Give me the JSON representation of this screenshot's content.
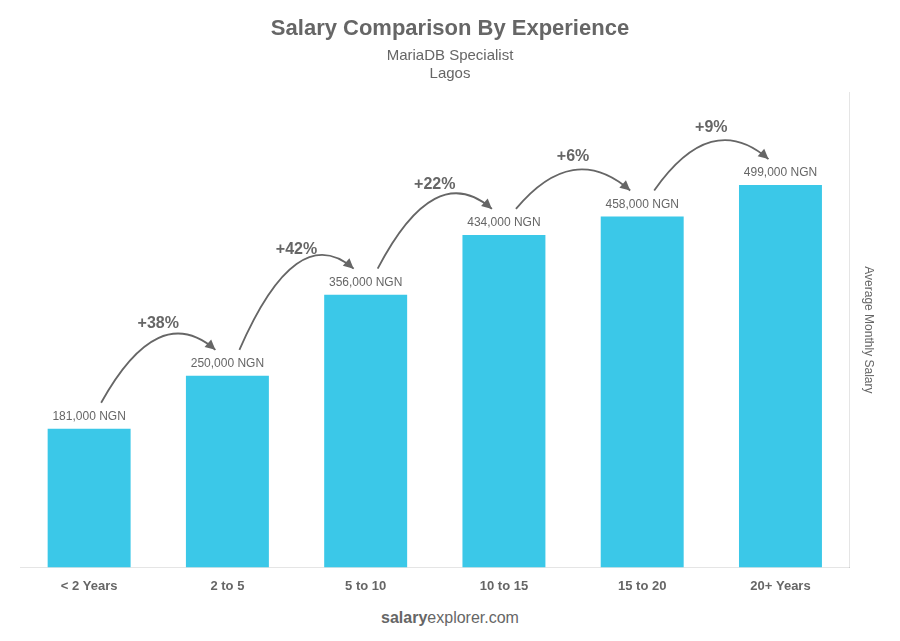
{
  "chart_data": {
    "type": "bar",
    "title": "Salary Comparison By Experience",
    "subtitle": "MariaDB Specialist",
    "city": "Lagos",
    "categories": [
      "< 2 Years",
      "2 to 5",
      "5 to 10",
      "10 to 15",
      "15 to 20",
      "20+ Years"
    ],
    "values": [
      181000,
      250000,
      356000,
      434000,
      458000,
      499000
    ],
    "value_labels": [
      "181,000 NGN",
      "250,000 NGN",
      "356,000 NGN",
      "434,000 NGN",
      "458,000 NGN",
      "499,000 NGN"
    ],
    "data_labels": true,
    "annotations": [
      null,
      "+38%",
      "+42%",
      "+22%",
      "+6%",
      "+9%"
    ],
    "color": "#3bc8e8",
    "ylabel": "Average Monthly Salary",
    "ylim": [
      0,
      620000
    ],
    "tick_labels": "x",
    "grid": false,
    "footer": [
      "salary",
      "explorer.com"
    ]
  }
}
